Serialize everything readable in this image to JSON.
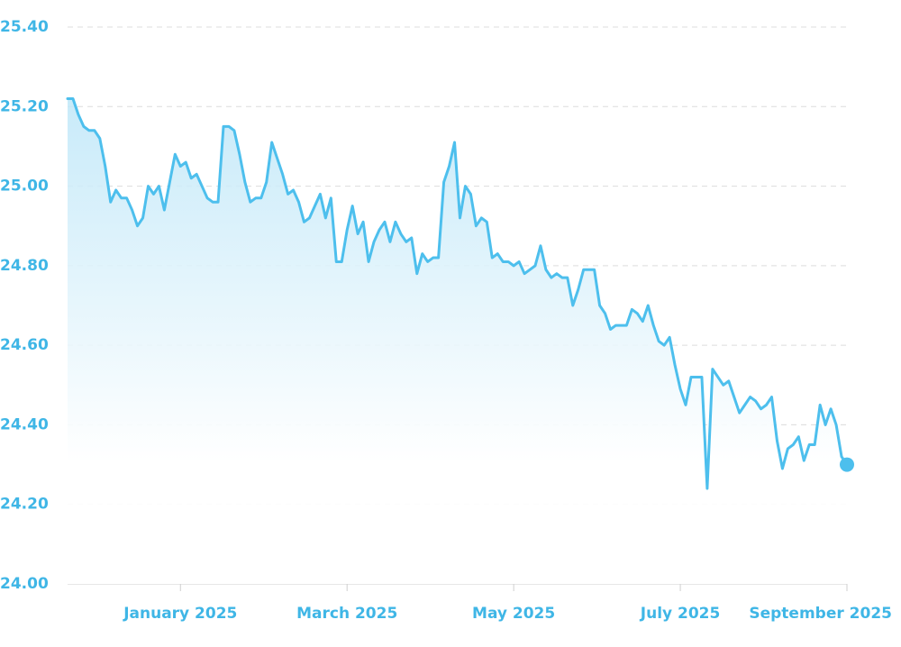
{
  "chart_data": {
    "type": "line",
    "categories": [
      null,
      null,
      null,
      null,
      null,
      null,
      null,
      null,
      null,
      null,
      null,
      null,
      null,
      null,
      null,
      null,
      null,
      null,
      null,
      null,
      null,
      "January 2025",
      null,
      null,
      null,
      null,
      null,
      null,
      null,
      null,
      null,
      null,
      null,
      null,
      null,
      null,
      null,
      null,
      null,
      null,
      null,
      null,
      null,
      null,
      null,
      null,
      null,
      null,
      null,
      null,
      null,
      null,
      "March 2025",
      null,
      null,
      null,
      null,
      null,
      null,
      null,
      null,
      null,
      null,
      null,
      null,
      null,
      null,
      null,
      null,
      null,
      null,
      null,
      null,
      null,
      null,
      null,
      null,
      null,
      null,
      null,
      null,
      null,
      null,
      "May 2025",
      null,
      null,
      null,
      null,
      null,
      null,
      null,
      null,
      null,
      null,
      null,
      null,
      null,
      null,
      null,
      null,
      null,
      null,
      null,
      null,
      null,
      null,
      null,
      null,
      null,
      null,
      null,
      null,
      null,
      null,
      "July 2025",
      null,
      null,
      null,
      null,
      null,
      null,
      null,
      null,
      null,
      null,
      null,
      null,
      null,
      null,
      null,
      null,
      null,
      null,
      null,
      null,
      null,
      null,
      null,
      null,
      null,
      null,
      null,
      null,
      null,
      null,
      "September 2025"
    ],
    "series": [
      {
        "color": "#4dbfed",
        "values": [
          25.22,
          25.22,
          25.18,
          25.15,
          25.14,
          25.14,
          25.12,
          25.05,
          24.96,
          24.99,
          24.97,
          24.97,
          24.94,
          24.9,
          24.92,
          25.0,
          24.98,
          25.0,
          24.94,
          25.01,
          25.08,
          25.05,
          25.06,
          25.02,
          25.03,
          25.0,
          24.97,
          24.96,
          24.96,
          25.15,
          25.15,
          25.14,
          25.08,
          25.01,
          24.96,
          24.97,
          24.97,
          25.01,
          25.11,
          25.07,
          25.03,
          24.98,
          24.99,
          24.96,
          24.91,
          24.92,
          24.95,
          24.98,
          24.92,
          24.97,
          24.81,
          24.81,
          24.89,
          24.95,
          24.88,
          24.91,
          24.81,
          24.86,
          24.89,
          24.91,
          24.86,
          24.91,
          24.88,
          24.86,
          24.87,
          24.78,
          24.83,
          24.81,
          24.82,
          24.82,
          25.01,
          25.05,
          25.11,
          24.92,
          25.0,
          24.98,
          24.9,
          24.92,
          24.91,
          24.82,
          24.83,
          24.81,
          24.81,
          24.8,
          24.81,
          24.78,
          24.79,
          24.8,
          24.85,
          24.79,
          24.77,
          24.78,
          24.77,
          24.77,
          24.7,
          24.74,
          24.79,
          24.79,
          24.79,
          24.7,
          24.68,
          24.64,
          24.65,
          24.65,
          24.65,
          24.69,
          24.68,
          24.66,
          24.7,
          24.65,
          24.61,
          24.6,
          24.62,
          24.55,
          24.49,
          24.45,
          24.52,
          24.52,
          24.52,
          24.24,
          24.54,
          24.52,
          24.5,
          24.51,
          24.47,
          24.43,
          24.45,
          24.47,
          24.46,
          24.44,
          24.45,
          24.47,
          24.36,
          24.29,
          24.34,
          24.35,
          24.37,
          24.31,
          24.35,
          24.35,
          24.45,
          24.4,
          24.44,
          24.4,
          24.32,
          24.3
        ]
      }
    ],
    "ylim": [
      24.0,
      25.4
    ],
    "yticks": [
      {
        "value": 24.0,
        "label": "24.00"
      },
      {
        "value": 24.2,
        "label": "24.20"
      },
      {
        "value": 24.4,
        "label": "24.40"
      },
      {
        "value": 24.6,
        "label": "24.60"
      },
      {
        "value": 24.8,
        "label": "24.80"
      },
      {
        "value": 25.0,
        "label": "25.00"
      },
      {
        "value": 25.2,
        "label": "25.20"
      },
      {
        "value": 25.4,
        "label": "25.40"
      }
    ],
    "grid": true
  }
}
